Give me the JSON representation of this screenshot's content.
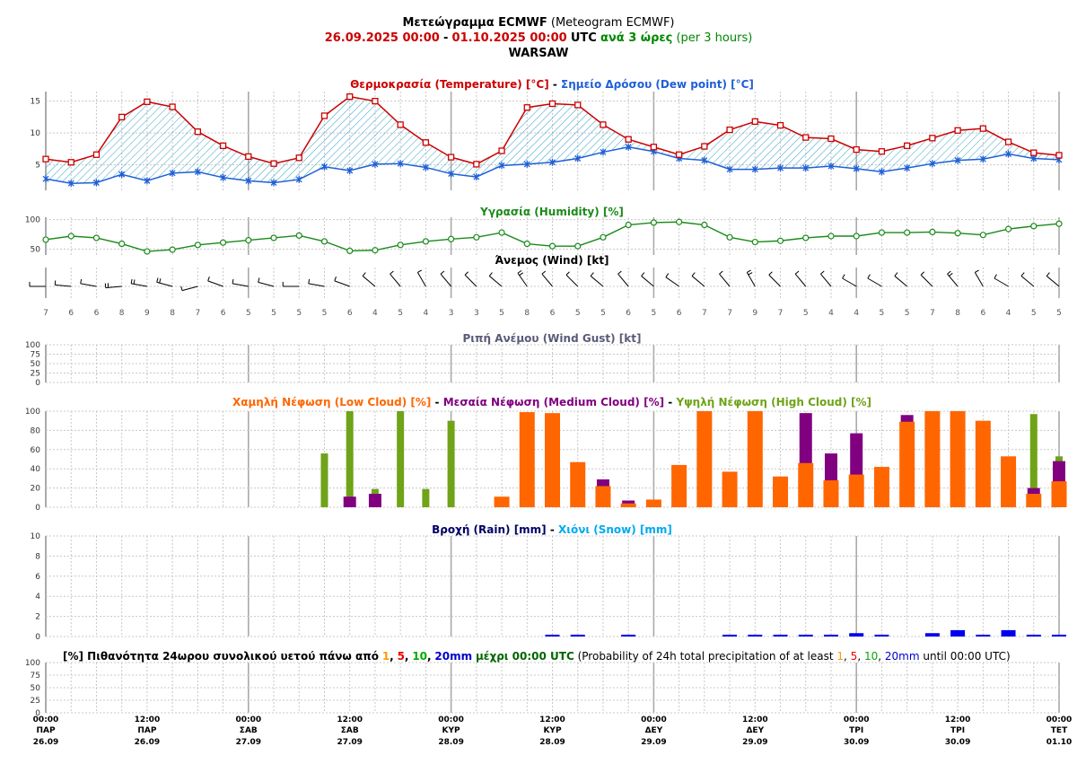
{
  "header": {
    "title_greek": "Μετεώγραμμα ECMWF",
    "title_english": "(Meteogram ECMWF)",
    "date_from": "26.09.2025 00:00",
    "dash": "-",
    "date_to": "01.10.2025 00:00",
    "tz": "UTC",
    "interval_greek": "ανά 3 ώρες",
    "interval_english": "(per 3 hours)",
    "location": "WARSAW"
  },
  "panels": {
    "temperature": {
      "title_a": "Θερμοκρασία (Temperature) [°C]",
      "sep": "-",
      "title_b": "Σημείο Δρόσου (Dew point) [°C]",
      "yticks": [
        "5",
        "10",
        "15"
      ]
    },
    "humidity": {
      "title": "Υγρασία (Humidity) [%]",
      "yticks": [
        "50",
        "100"
      ]
    },
    "wind": {
      "title": "Άνεμος (Wind) [kt]"
    },
    "gust": {
      "title": "Ριπή Ανέμου (Wind Gust) [kt]",
      "yticks": [
        "0",
        "25",
        "50",
        "75",
        "100"
      ]
    },
    "cloud": {
      "title_low": "Χαμηλή Νέφωση (Low Cloud) [%]",
      "title_medium": "Μεσαία Νέφωση (Medium Cloud) [%]",
      "title_high": "Υψηλή Νέφωση (High Cloud) [%]",
      "sep": "-",
      "yticks": [
        "0",
        "20",
        "40",
        "60",
        "80",
        "100"
      ]
    },
    "rain": {
      "title_rain": "Βροχή (Rain) [mm]",
      "sep": "-",
      "title_snow": "Χιόνι (Snow) [mm]",
      "yticks": [
        "0",
        "2",
        "4",
        "6",
        "8",
        "10"
      ]
    },
    "probability": {
      "title_prefix": "[%] Πιθανότητα 24ωρου συνολικού υετού πάνω από",
      "t1": "1",
      "t5": "5",
      "t10": "10",
      "t20": "20mm",
      "mid": "μέχρι 00:00 UTC",
      "english_prefix": "(Probability of 24h total precipitation of at least",
      "english_until": "until 00:00 UTC)",
      "comma": ",",
      "yticks": [
        "0",
        "25",
        "50",
        "75",
        "100"
      ]
    }
  },
  "colors": {
    "temperature": "#cc0000",
    "dewpoint": "#1f5fd6",
    "humidity": "#1a8a1a",
    "low_cloud": "#ff6600",
    "medium_cloud": "#800080",
    "high_cloud": "#6fa318",
    "rain": "#0000ee",
    "snow": "#00aaee",
    "gust_title": "#5a5a78",
    "date_red": "#cc0000",
    "interval_green": "#008800",
    "hatch": "#33a3c4"
  },
  "chart_data": [
    {
      "type": "line",
      "name": "temperature_dewpoint",
      "x": [
        "26.09 00",
        "26.09 03",
        "26.09 06",
        "26.09 09",
        "26.09 12",
        "26.09 15",
        "26.09 18",
        "26.09 21",
        "27.09 00",
        "27.09 03",
        "27.09 06",
        "27.09 09",
        "27.09 12",
        "27.09 15",
        "27.09 18",
        "27.09 21",
        "28.09 00",
        "28.09 03",
        "28.09 06",
        "28.09 09",
        "28.09 12",
        "28.09 15",
        "28.09 18",
        "28.09 21",
        "29.09 00",
        "29.09 03",
        "29.09 06",
        "29.09 09",
        "29.09 12",
        "29.09 15",
        "29.09 18",
        "29.09 21",
        "30.09 00",
        "30.09 03",
        "30.09 06",
        "30.09 09",
        "30.09 12",
        "30.09 15",
        "30.09 18",
        "30.09 21",
        "01.10 00"
      ],
      "series": [
        {
          "name": "Θερμοκρασία (Temperature) [°C]",
          "values": [
            5.9,
            5.4,
            6.6,
            12.5,
            14.9,
            14.1,
            10.2,
            8.0,
            6.3,
            5.2,
            6.1,
            12.7,
            15.7,
            15.0,
            11.3,
            8.5,
            6.2,
            5.1,
            7.2,
            14.0,
            14.6,
            14.4,
            11.3,
            9.0,
            7.8,
            6.6,
            7.9,
            10.5,
            11.8,
            11.2,
            9.3,
            9.1,
            7.4,
            7.1,
            8.0,
            9.2,
            10.4,
            10.7,
            8.6,
            6.9,
            6.5
          ]
        },
        {
          "name": "Σημείο Δρόσου (Dew point) [°C]",
          "values": [
            2.8,
            2.1,
            2.2,
            3.5,
            2.5,
            3.7,
            3.9,
            3.0,
            2.5,
            2.2,
            2.7,
            4.7,
            4.1,
            5.1,
            5.2,
            4.6,
            3.6,
            3.1,
            4.9,
            5.1,
            5.4,
            6.0,
            7.0,
            7.8,
            7.1,
            6.0,
            5.7,
            4.3,
            4.3,
            4.5,
            4.5,
            4.8,
            4.4,
            3.9,
            4.5,
            5.2,
            5.7,
            5.9,
            6.7,
            6.0,
            5.8
          ]
        }
      ],
      "ylim": [
        1,
        16.5
      ]
    },
    {
      "type": "line",
      "name": "humidity",
      "x": [
        "26.09 00",
        "26.09 03",
        "26.09 06",
        "26.09 09",
        "26.09 12",
        "26.09 15",
        "26.09 18",
        "26.09 21",
        "27.09 00",
        "27.09 03",
        "27.09 06",
        "27.09 09",
        "27.09 12",
        "27.09 15",
        "27.09 18",
        "27.09 21",
        "28.09 00",
        "28.09 03",
        "28.09 06",
        "28.09 09",
        "28.09 12",
        "28.09 15",
        "28.09 18",
        "28.09 21",
        "29.09 00",
        "29.09 03",
        "29.09 06",
        "29.09 09",
        "29.09 12",
        "29.09 15",
        "29.09 18",
        "29.09 21",
        "30.09 00",
        "30.09 03",
        "30.09 06",
        "30.09 09",
        "30.09 12",
        "30.09 15",
        "30.09 18",
        "30.09 21",
        "01.10 00"
      ],
      "series": [
        {
          "name": "Υγρασία (Humidity) [%]",
          "values": [
            66,
            72,
            69,
            59,
            46,
            49,
            57,
            61,
            65,
            69,
            73,
            63,
            47,
            48,
            57,
            63,
            67,
            70,
            78,
            59,
            55,
            55,
            70,
            91,
            95,
            96,
            91,
            70,
            62,
            64,
            69,
            72,
            72,
            78,
            78,
            79,
            77,
            74,
            84,
            89,
            93
          ]
        }
      ],
      "ylim": [
        40,
        104
      ]
    },
    {
      "type": "line",
      "name": "wind",
      "x": [
        "26.09 00",
        "26.09 03",
        "26.09 06",
        "26.09 09",
        "26.09 12",
        "26.09 15",
        "26.09 18",
        "26.09 21",
        "27.09 00",
        "27.09 03",
        "27.09 06",
        "27.09 09",
        "27.09 12",
        "27.09 15",
        "27.09 18",
        "27.09 21",
        "28.09 00",
        "28.09 03",
        "28.09 06",
        "28.09 09",
        "28.09 12",
        "28.09 15",
        "28.09 18",
        "28.09 21",
        "29.09 00",
        "29.09 03",
        "29.09 06",
        "29.09 09",
        "29.09 12",
        "29.09 15",
        "29.09 18",
        "29.09 21",
        "30.09 00",
        "30.09 03",
        "30.09 06",
        "30.09 09",
        "30.09 12",
        "30.09 15",
        "30.09 18",
        "30.09 21",
        "01.10 00"
      ],
      "series": [
        {
          "name": "Άνεμος (Wind) [kt]",
          "values": [
            7,
            6,
            6,
            8,
            9,
            8,
            7,
            6,
            5,
            5,
            5,
            5,
            6,
            4,
            5,
            4,
            3,
            3,
            5,
            8,
            6,
            5,
            5,
            6,
            5,
            6,
            7,
            7,
            9,
            7,
            5,
            4,
            4,
            5,
            5,
            7,
            8,
            6,
            4,
            5,
            5
          ]
        }
      ],
      "direction_deg": [
        270,
        275,
        280,
        265,
        280,
        285,
        255,
        290,
        280,
        285,
        270,
        280,
        290,
        310,
        320,
        330,
        320,
        315,
        310,
        325,
        320,
        315,
        310,
        320,
        310,
        305,
        310,
        320,
        330,
        315,
        320,
        320,
        300,
        300,
        310,
        315,
        320,
        330,
        300,
        310,
        310
      ]
    },
    {
      "type": "bar",
      "name": "cloud",
      "x": [
        "26.09 00",
        "26.09 03",
        "26.09 06",
        "26.09 09",
        "26.09 12",
        "26.09 15",
        "26.09 18",
        "26.09 21",
        "27.09 00",
        "27.09 03",
        "27.09 06",
        "27.09 09",
        "27.09 12",
        "27.09 15",
        "27.09 18",
        "27.09 21",
        "28.09 00",
        "28.09 03",
        "28.09 06",
        "28.09 09",
        "28.09 12",
        "28.09 15",
        "28.09 18",
        "28.09 21",
        "29.09 00",
        "29.09 03",
        "29.09 06",
        "29.09 09",
        "29.09 12",
        "29.09 15",
        "29.09 18",
        "29.09 21",
        "30.09 00",
        "30.09 03",
        "30.09 06",
        "30.09 09",
        "30.09 12",
        "30.09 15",
        "30.09 18",
        "30.09 21",
        "01.10 00"
      ],
      "series": [
        {
          "name": "Χαμηλή Νέφωση (Low Cloud) [%]",
          "values": [
            0,
            0,
            0,
            0,
            0,
            0,
            0,
            0,
            0,
            0,
            0,
            0,
            0,
            0,
            0,
            0,
            0,
            0,
            11,
            99,
            98,
            47,
            22,
            4,
            8,
            44,
            100,
            37,
            100,
            32,
            46,
            28,
            34,
            42,
            89,
            100,
            100,
            90,
            53,
            14,
            27
          ]
        },
        {
          "name": "Μεσαία Νέφωση (Medium Cloud) [%]",
          "values": [
            0,
            0,
            0,
            0,
            0,
            0,
            0,
            0,
            0,
            0,
            0,
            0,
            11,
            14,
            0,
            0,
            0,
            0,
            0,
            0,
            0,
            0,
            29,
            7,
            0,
            0,
            0,
            0,
            0,
            0,
            98,
            56,
            77,
            0,
            96,
            0,
            0,
            0,
            0,
            20,
            48
          ]
        },
        {
          "name": "Υψηλή Νέφωση (High Cloud) [%]",
          "values": [
            0,
            0,
            0,
            0,
            0,
            0,
            0,
            0,
            0,
            0,
            0,
            56,
            100,
            19,
            100,
            19,
            90,
            0,
            2,
            0,
            0,
            0,
            0,
            0,
            0,
            0,
            0,
            0,
            0,
            0,
            0,
            0,
            0,
            0,
            0,
            0,
            0,
            0,
            0,
            97,
            53
          ]
        }
      ],
      "ylim": [
        0,
        100
      ]
    },
    {
      "type": "bar",
      "name": "precipitation",
      "x": [
        "26.09 00",
        "26.09 03",
        "26.09 06",
        "26.09 09",
        "26.09 12",
        "26.09 15",
        "26.09 18",
        "26.09 21",
        "27.09 00",
        "27.09 03",
        "27.09 06",
        "27.09 09",
        "27.09 12",
        "27.09 15",
        "27.09 18",
        "27.09 21",
        "28.09 00",
        "28.09 03",
        "28.09 06",
        "28.09 09",
        "28.09 12",
        "28.09 15",
        "28.09 18",
        "28.09 21",
        "29.09 00",
        "29.09 03",
        "29.09 06",
        "29.09 09",
        "29.09 12",
        "29.09 15",
        "29.09 18",
        "29.09 21",
        "30.09 00",
        "30.09 03",
        "30.09 06",
        "30.09 09",
        "30.09 12",
        "30.09 15",
        "30.09 18",
        "30.09 21",
        "01.10 00"
      ],
      "series": [
        {
          "name": "Βροχή (Rain) [mm]",
          "values": [
            0,
            0,
            0,
            0,
            0,
            0,
            0,
            0,
            0,
            0,
            0,
            0,
            0,
            0,
            0,
            0,
            0,
            0,
            0,
            0,
            0.05,
            0.05,
            0,
            0.05,
            0,
            0,
            0,
            0.05,
            0.05,
            0.05,
            0.05,
            0.05,
            0.2,
            0.05,
            0,
            0.2,
            0.5,
            0.05,
            0.5,
            0.05,
            0.05
          ]
        },
        {
          "name": "Χιόνι (Snow) [mm]",
          "values": [
            0,
            0,
            0,
            0,
            0,
            0,
            0,
            0,
            0,
            0,
            0,
            0,
            0,
            0,
            0,
            0,
            0,
            0,
            0,
            0,
            0,
            0,
            0,
            0,
            0,
            0,
            0,
            0,
            0,
            0,
            0,
            0,
            0,
            0,
            0,
            0,
            0,
            0,
            0,
            0,
            0
          ]
        }
      ],
      "ylim": [
        0,
        10
      ]
    },
    {
      "type": "bar",
      "name": "gust",
      "series": [
        {
          "name": "Ριπή Ανέμου (Wind Gust) [kt]",
          "values": []
        }
      ],
      "ylim": [
        0,
        100
      ]
    },
    {
      "type": "bar",
      "name": "probability",
      "series": [
        {
          "name": "Probability of 24h total precipitation",
          "values": []
        }
      ],
      "ylim": [
        0,
        100
      ]
    }
  ],
  "x_axis": {
    "ticks": [
      {
        "time": "00:00",
        "day": "ΠΑΡ",
        "date": "26.09"
      },
      {
        "time": "12:00",
        "day": "ΠΑΡ",
        "date": "26.09"
      },
      {
        "time": "00:00",
        "day": "ΣΑΒ",
        "date": "27.09"
      },
      {
        "time": "12:00",
        "day": "ΣΑΒ",
        "date": "27.09"
      },
      {
        "time": "00:00",
        "day": "ΚΥΡ",
        "date": "28.09"
      },
      {
        "time": "12:00",
        "day": "ΚΥΡ",
        "date": "28.09"
      },
      {
        "time": "00:00",
        "day": "ΔΕΥ",
        "date": "29.09"
      },
      {
        "time": "12:00",
        "day": "ΔΕΥ",
        "date": "29.09"
      },
      {
        "time": "00:00",
        "day": "ΤΡΙ",
        "date": "30.09"
      },
      {
        "time": "12:00",
        "day": "ΤΡΙ",
        "date": "30.09"
      },
      {
        "time": "00:00",
        "day": "ΤΕΤ",
        "date": "01.10"
      }
    ]
  }
}
